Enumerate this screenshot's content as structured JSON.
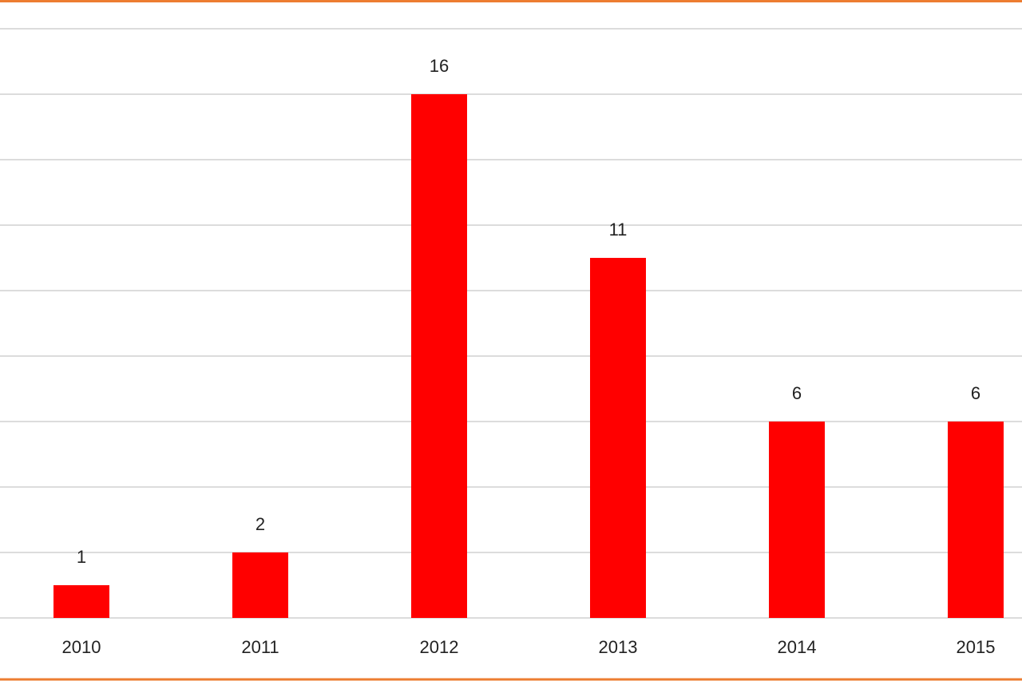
{
  "chart_data": {
    "type": "bar",
    "categories": [
      "2010",
      "2011",
      "2012",
      "2013",
      "2014",
      "2015"
    ],
    "values": [
      1,
      2,
      16,
      11,
      6,
      6
    ],
    "color": "#ff0000",
    "ylim": [
      0,
      18
    ],
    "yticks": [
      0,
      2,
      4,
      6,
      8,
      10,
      12,
      14,
      16,
      18
    ],
    "grid": true,
    "data_labels": true
  }
}
